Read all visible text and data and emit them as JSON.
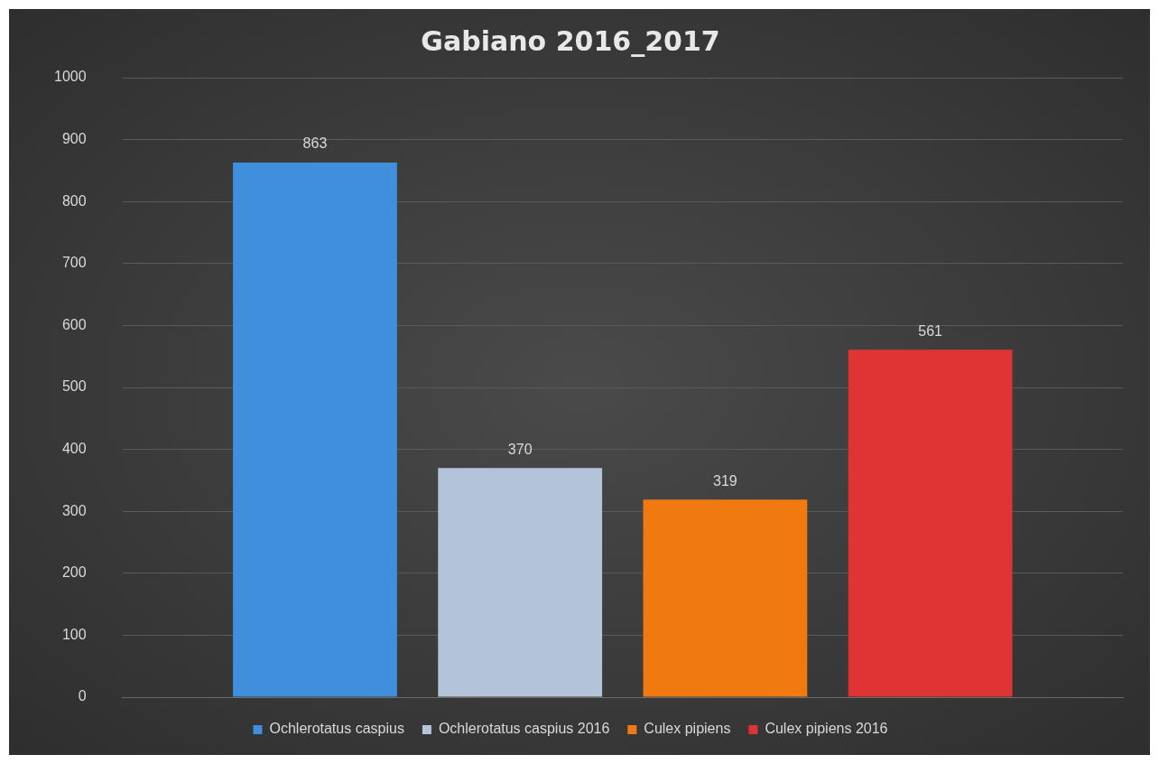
{
  "chart_data": {
    "type": "bar",
    "title": "Gabiano 2016_2017",
    "categories": [
      null
    ],
    "series": [
      {
        "name": "Ochlerotatus caspius",
        "color": "#3f8fdc",
        "values": [
          863
        ]
      },
      {
        "name": "Ochlerotatus caspius 2016",
        "color": "#b4c4d8",
        "values": [
          370
        ]
      },
      {
        "name": "Culex pipiens",
        "color": "#f07a10",
        "values": [
          319
        ]
      },
      {
        "name": "Culex pipiens 2016",
        "color": "#e03434",
        "values": [
          561
        ]
      }
    ],
    "ylim": [
      0,
      1000
    ],
    "yticks": [
      0,
      100,
      200,
      300,
      400,
      500,
      600,
      700,
      800,
      900,
      1000
    ],
    "grid": "y",
    "legend": "bottom",
    "tick_labels": "y",
    "data_labels": true
  }
}
